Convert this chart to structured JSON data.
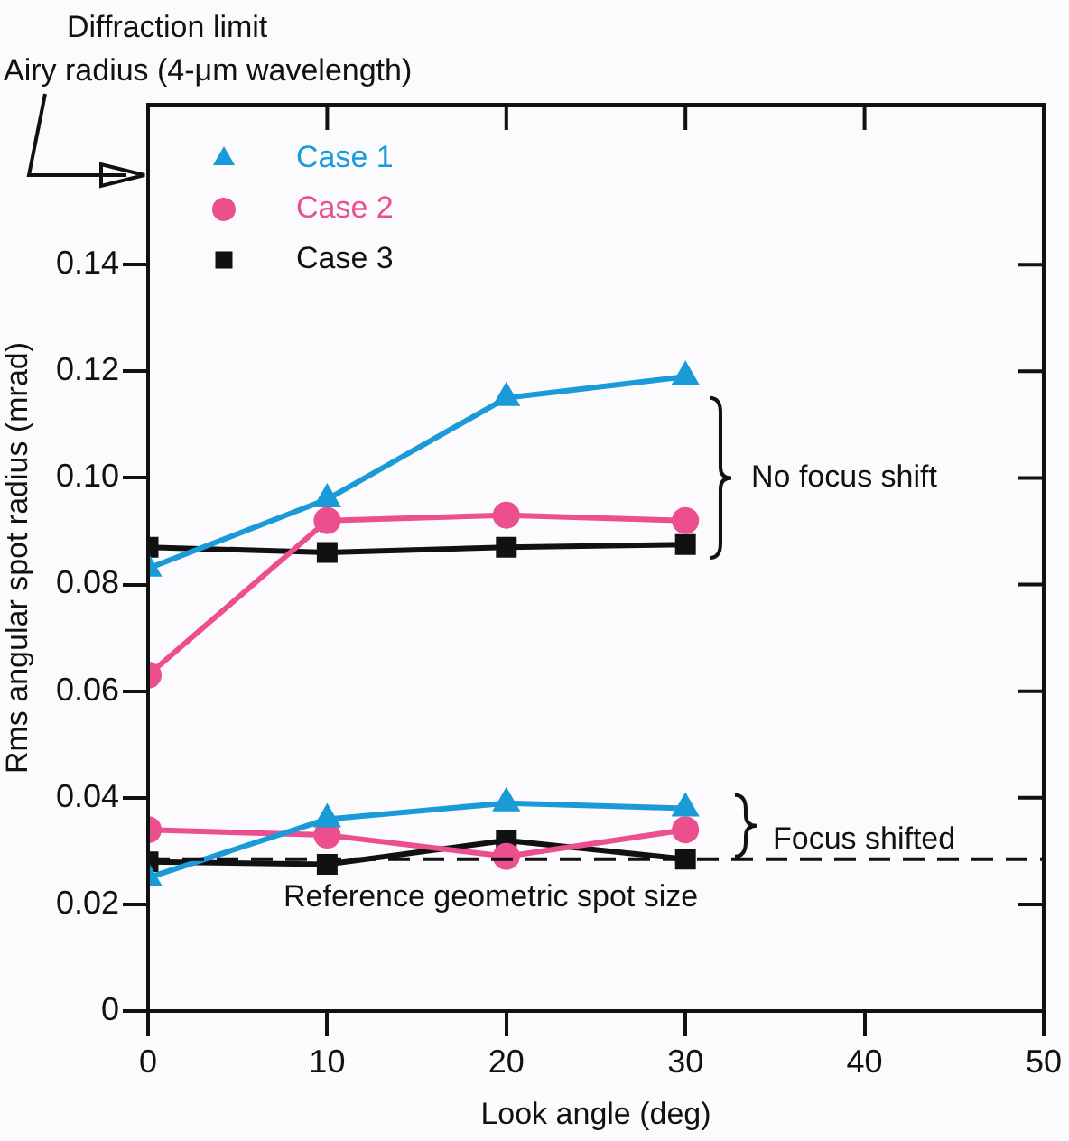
{
  "chart_data": {
    "type": "line",
    "xlabel": "Look angle (deg)",
    "ylabel": "Rms angular spot radius (mrad)",
    "x": [
      0,
      10,
      20,
      30
    ],
    "series": [
      {
        "name": "Case 1",
        "color": "#1b9ad8",
        "marker": "triangle",
        "values": [
          0.083,
          0.096,
          0.115,
          0.119
        ]
      },
      {
        "name": "Case 2",
        "color": "#ec4f8d",
        "marker": "circle",
        "values": [
          0.063,
          0.092,
          0.093,
          0.092
        ]
      },
      {
        "name": "Case 3",
        "color": "#111111",
        "marker": "square",
        "values": [
          0.087,
          0.086,
          0.087,
          0.0875
        ]
      },
      {
        "color": "#1b9ad8",
        "marker": "triangle",
        "values": [
          0.025,
          0.036,
          0.039,
          0.038
        ]
      },
      {
        "color": "#ec4f8d",
        "marker": "circle",
        "values": [
          0.034,
          0.033,
          0.029,
          0.034
        ]
      },
      {
        "color": "#111111",
        "marker": "square",
        "values": [
          0.028,
          0.0275,
          0.032,
          0.0285
        ]
      }
    ],
    "xlim": [
      0,
      50
    ],
    "xticks": [
      0,
      10,
      20,
      30,
      40,
      50
    ],
    "ylim": [
      0,
      0.17
    ],
    "yticks": [
      0,
      0.02,
      0.04,
      0.06,
      0.08,
      {
        "value": 0.1,
        "label": "0.10"
      },
      0.12,
      0.14
    ],
    "ref_lines": [
      {
        "axis": "y",
        "value": 0.0285,
        "label": "Reference geometric spot size",
        "color": "#111111",
        "line_style": "dashed"
      }
    ],
    "annotations": [
      "Diffraction limit",
      "Airy radius (4-μm wavelength)",
      "No focus shift",
      "Focus shifted"
    ],
    "legend": "top left",
    "grid": false,
    "line_style": "solid"
  }
}
